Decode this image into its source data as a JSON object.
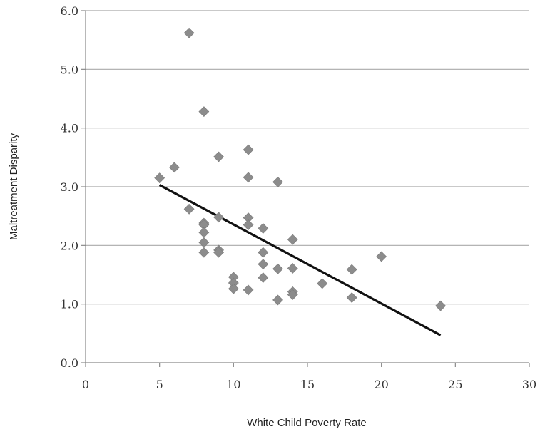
{
  "chart_data": {
    "type": "scatter",
    "title": "",
    "xlabel": "White Child Poverty Rate",
    "ylabel": "Maltreatment Disparity",
    "xlim": [
      0,
      30
    ],
    "ylim": [
      0,
      6
    ],
    "x_ticks": [
      "0",
      "5",
      "10",
      "15",
      "20",
      "25",
      "30"
    ],
    "y_ticks": [
      "0.0",
      "1.0",
      "2.0",
      "3.0",
      "4.0",
      "5.0",
      "6.0"
    ],
    "grid": "horizontal",
    "legend": "none",
    "marker": "diamond",
    "marker_color": "#8c8c8c",
    "trendline_color": "#111111",
    "points": [
      {
        "x": 5,
        "y": 3.15
      },
      {
        "x": 6,
        "y": 3.33
      },
      {
        "x": 7,
        "y": 5.62
      },
      {
        "x": 7,
        "y": 2.62
      },
      {
        "x": 8,
        "y": 4.28
      },
      {
        "x": 8,
        "y": 2.38
      },
      {
        "x": 8,
        "y": 2.35
      },
      {
        "x": 8,
        "y": 2.22
      },
      {
        "x": 8,
        "y": 2.05
      },
      {
        "x": 8,
        "y": 1.88
      },
      {
        "x": 9,
        "y": 3.51
      },
      {
        "x": 9,
        "y": 2.48
      },
      {
        "x": 9,
        "y": 1.92
      },
      {
        "x": 9,
        "y": 1.88
      },
      {
        "x": 10,
        "y": 1.46
      },
      {
        "x": 10,
        "y": 1.36
      },
      {
        "x": 10,
        "y": 1.26
      },
      {
        "x": 11,
        "y": 3.63
      },
      {
        "x": 11,
        "y": 3.16
      },
      {
        "x": 11,
        "y": 2.47
      },
      {
        "x": 11,
        "y": 2.35
      },
      {
        "x": 11,
        "y": 1.24
      },
      {
        "x": 12,
        "y": 2.29
      },
      {
        "x": 12,
        "y": 1.88
      },
      {
        "x": 12,
        "y": 1.68
      },
      {
        "x": 12,
        "y": 1.45
      },
      {
        "x": 13,
        "y": 3.08
      },
      {
        "x": 13,
        "y": 1.6
      },
      {
        "x": 13,
        "y": 1.07
      },
      {
        "x": 14,
        "y": 2.1
      },
      {
        "x": 14,
        "y": 1.61
      },
      {
        "x": 14,
        "y": 1.21
      },
      {
        "x": 14,
        "y": 1.16
      },
      {
        "x": 16,
        "y": 1.35
      },
      {
        "x": 18,
        "y": 1.59
      },
      {
        "x": 18,
        "y": 1.11
      },
      {
        "x": 20,
        "y": 1.81
      },
      {
        "x": 24,
        "y": 0.97
      }
    ],
    "trendline": [
      {
        "x": 5,
        "y": 3.03
      },
      {
        "x": 24,
        "y": 0.47
      }
    ]
  }
}
